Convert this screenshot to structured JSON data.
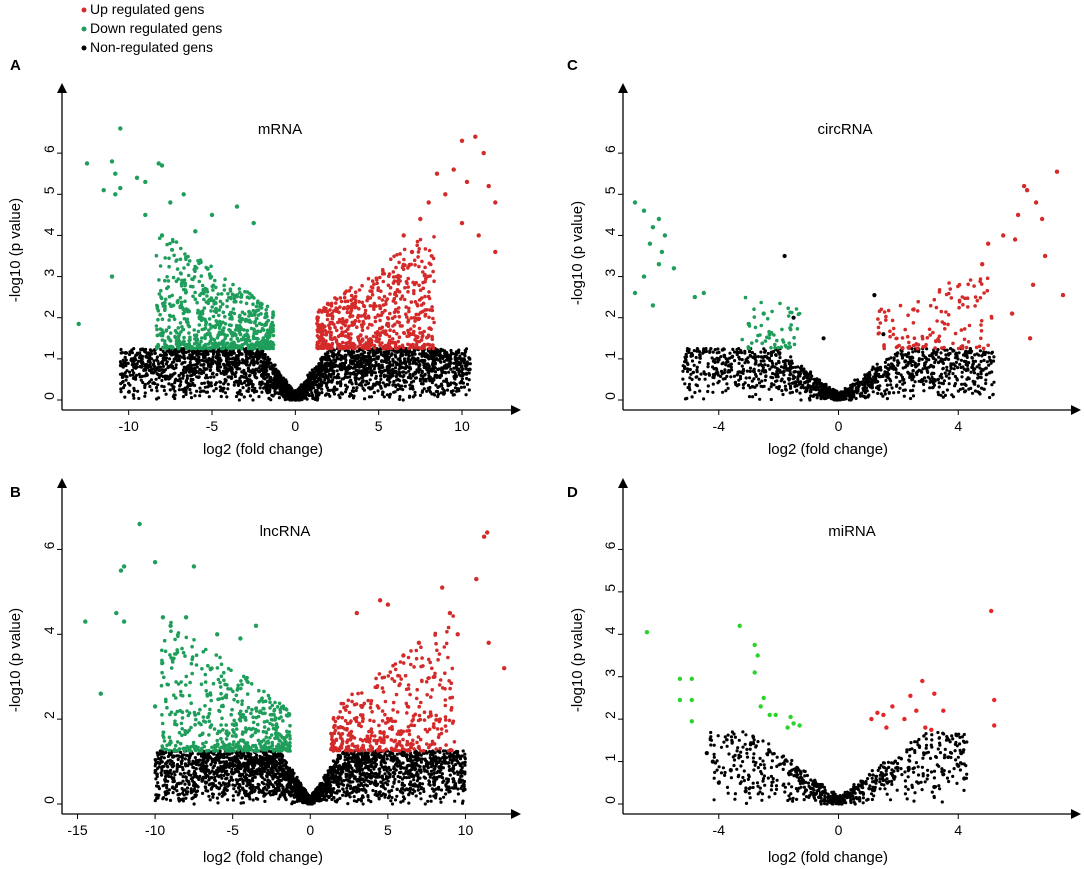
{
  "legend": {
    "position": "top-left",
    "items": [
      {
        "label": "Up regulated gens",
        "color": "#d42a2a"
      },
      {
        "label": "Down regulated gens",
        "color": "#1e9e5a"
      },
      {
        "label": "Non-regulated gens",
        "color": "#000000"
      }
    ]
  },
  "chart_data": [
    {
      "type": "scatter",
      "panel_label": "A",
      "title": "mRNA",
      "xlabel": "log2 (fold change)",
      "ylabel": "-log10 (p value)",
      "xlim": [
        -14,
        13
      ],
      "ylim": [
        0,
        7
      ],
      "xticks": [
        -10,
        -5,
        0,
        5,
        10
      ],
      "yticks": [
        0,
        1,
        2,
        3,
        4,
        5,
        6
      ],
      "colors": {
        "up": "#d42a2a",
        "down": "#1e9e5a",
        "non": "#000000"
      },
      "thresholds": {
        "p": 1.25,
        "fc": 1
      },
      "ns_extent": 10.5,
      "n": {
        "up": 650,
        "down": 700,
        "non": 2800
      },
      "spread": {
        "up": 2.2,
        "down": 2.2
      },
      "seed": 11,
      "outliers_up": [
        [
          10,
          6.3
        ],
        [
          10.8,
          6.4
        ],
        [
          11.3,
          6.0
        ],
        [
          11.6,
          5.2
        ],
        [
          12,
          4.8
        ],
        [
          10.3,
          5.3
        ],
        [
          9.5,
          5.6
        ],
        [
          10,
          4.3
        ],
        [
          11,
          4.0
        ],
        [
          12,
          3.6
        ],
        [
          8.5,
          5.5
        ],
        [
          9,
          5.0
        ],
        [
          8,
          4.8
        ],
        [
          7.5,
          4.4
        ],
        [
          6.5,
          4.0
        ],
        [
          7,
          3.6
        ]
      ],
      "outliers_down": [
        [
          -10.5,
          6.6
        ],
        [
          -12.5,
          5.75
        ],
        [
          -11,
          5.8
        ],
        [
          -10.8,
          5.5
        ],
        [
          -9.5,
          5.4
        ],
        [
          -8.2,
          5.75
        ],
        [
          -8,
          5.7
        ],
        [
          -9,
          5.3
        ],
        [
          -11.5,
          5.1
        ],
        [
          -10.8,
          5.0
        ],
        [
          -10.5,
          5.15
        ],
        [
          -13,
          1.85
        ],
        [
          -11,
          3.0
        ],
        [
          -6.7,
          5.0
        ],
        [
          -7.5,
          4.8
        ],
        [
          -3.5,
          4.7
        ],
        [
          -5,
          4.5
        ],
        [
          -9,
          4.5
        ],
        [
          -8,
          4.0
        ],
        [
          -6,
          4.1
        ],
        [
          -2.5,
          4.3
        ]
      ]
    },
    {
      "type": "scatter",
      "panel_label": "B",
      "title": "lncRNA",
      "xlabel": "log2 (fold change)",
      "ylabel": "-log10 (p value)",
      "xlim": [
        -16,
        13
      ],
      "ylim": [
        0,
        7
      ],
      "xticks": [
        -15,
        -10,
        -5,
        0,
        5,
        10
      ],
      "yticks": [
        0,
        2,
        4,
        6
      ],
      "colors": {
        "up": "#d42a2a",
        "down": "#1e9e5a",
        "non": "#000000"
      },
      "thresholds": {
        "p": 1.25,
        "fc": 1
      },
      "ns_extent": 10,
      "n": {
        "up": 400,
        "down": 520,
        "non": 2600
      },
      "spread": {
        "up": 2.5,
        "down": 2.6
      },
      "seed": 23,
      "outliers_up": [
        [
          11.4,
          6.4
        ],
        [
          11.2,
          6.3
        ],
        [
          10.7,
          5.3
        ],
        [
          8.5,
          5.1
        ],
        [
          12.5,
          3.2
        ],
        [
          11.5,
          3.8
        ],
        [
          9,
          4.5
        ],
        [
          4.5,
          4.8
        ],
        [
          5,
          4.7
        ],
        [
          3,
          4.5
        ],
        [
          7,
          3.8
        ],
        [
          9.5,
          4.0
        ],
        [
          6,
          3.5
        ],
        [
          8,
          3.0
        ]
      ],
      "outliers_down": [
        [
          -11,
          6.6
        ],
        [
          -12,
          5.6
        ],
        [
          -12.2,
          5.5
        ],
        [
          -10,
          5.7
        ],
        [
          -7.5,
          5.6
        ],
        [
          -14.5,
          4.3
        ],
        [
          -12.5,
          4.5
        ],
        [
          -12,
          4.3
        ],
        [
          -9.5,
          4.4
        ],
        [
          -8,
          4.4
        ],
        [
          -13.5,
          2.6
        ],
        [
          -10,
          2.3
        ],
        [
          -9,
          4.2
        ],
        [
          -6,
          4.0
        ],
        [
          -3.5,
          4.2
        ],
        [
          -4.5,
          3.9
        ]
      ]
    },
    {
      "type": "scatter",
      "panel_label": "C",
      "title": "circRNA",
      "xlabel": "log2 (fold change)",
      "ylabel": "-log10 (p value)",
      "xlim": [
        -7.2,
        7.8
      ],
      "ylim": [
        0,
        7
      ],
      "xticks": [
        -4,
        0,
        4
      ],
      "yticks": [
        0,
        1,
        2,
        3,
        4,
        5,
        6
      ],
      "colors": {
        "up": "#d42a2a",
        "down": "#1e9e5a",
        "non": "#000000"
      },
      "thresholds": {
        "p": 1.25,
        "fc": 1
      },
      "ns_extent": 5.2,
      "n": {
        "up": 130,
        "down": 55,
        "non": 1300
      },
      "spread": {
        "up": 1.2,
        "down": 0.6
      },
      "seed": 37,
      "outliers_up": [
        [
          7.3,
          5.55
        ],
        [
          6.2,
          5.2
        ],
        [
          6.3,
          5.1
        ],
        [
          6.6,
          4.8
        ],
        [
          6,
          4.5
        ],
        [
          6.8,
          4.4
        ],
        [
          5.5,
          4.0
        ],
        [
          5.9,
          3.9
        ],
        [
          5,
          3.8
        ],
        [
          6.9,
          3.5
        ],
        [
          7.5,
          2.55
        ],
        [
          6.5,
          2.8
        ],
        [
          4.8,
          3.3
        ],
        [
          6.4,
          1.5
        ],
        [
          5.8,
          2.1
        ]
      ],
      "outliers_down": [
        [
          -6.8,
          4.8
        ],
        [
          -6.5,
          4.6
        ],
        [
          -6,
          4.4
        ],
        [
          -6.2,
          4.2
        ],
        [
          -5.8,
          4.0
        ],
        [
          -6.3,
          3.8
        ],
        [
          -5.9,
          3.6
        ],
        [
          -6,
          3.3
        ],
        [
          -6.5,
          3.0
        ],
        [
          -5.5,
          3.2
        ],
        [
          -4.8,
          2.5
        ],
        [
          -4.5,
          2.6
        ],
        [
          -6.2,
          2.3
        ],
        [
          -6.8,
          2.6
        ],
        [
          -2.5,
          2.1
        ],
        [
          -2.3,
          1.6
        ],
        [
          -3,
          1.85
        ]
      ],
      "outliers_non": [
        [
          -1.8,
          3.5
        ],
        [
          1.2,
          2.55
        ],
        [
          -1.5,
          2.0
        ],
        [
          1.5,
          1.6
        ],
        [
          -0.5,
          1.5
        ]
      ]
    },
    {
      "type": "scatter",
      "panel_label": "D",
      "title": "miRNA",
      "xlabel": "log2 (fold change)",
      "ylabel": "-log10 (p value)",
      "xlim": [
        -7.2,
        7.8
      ],
      "ylim": [
        0,
        7
      ],
      "xticks": [
        -4,
        0,
        4
      ],
      "yticks": [
        0,
        1,
        2,
        3,
        4,
        5,
        6
      ],
      "colors": {
        "up": "#e8262a",
        "down": "#2ad42a",
        "non": "#000000"
      },
      "thresholds": {
        "p": 1.7,
        "fc": 1
      },
      "ns_extent": 4.3,
      "n": {
        "up": 0,
        "down": 0,
        "non": 700
      },
      "spread": {
        "up": 1,
        "down": 1
      },
      "seed": 41,
      "outliers_up": [
        [
          5.1,
          4.55
        ],
        [
          5.2,
          2.45
        ],
        [
          5.2,
          1.85
        ],
        [
          3.2,
          2.6
        ],
        [
          2.8,
          2.9
        ],
        [
          3.5,
          2.2
        ],
        [
          2.4,
          2.55
        ],
        [
          1.8,
          2.3
        ],
        [
          1.5,
          2.1
        ],
        [
          1.3,
          2.15
        ],
        [
          2.2,
          2.0
        ],
        [
          1.6,
          1.8
        ],
        [
          2.9,
          1.8
        ],
        [
          3.1,
          1.75
        ],
        [
          1.1,
          2.0
        ],
        [
          2.6,
          2.2
        ]
      ],
      "outliers_down": [
        [
          -6.4,
          4.05
        ],
        [
          -3.3,
          4.2
        ],
        [
          -2.8,
          3.75
        ],
        [
          -2.7,
          3.5
        ],
        [
          -2.8,
          3.1
        ],
        [
          -5.3,
          2.95
        ],
        [
          -4.9,
          2.95
        ],
        [
          -5.3,
          2.45
        ],
        [
          -4.9,
          2.45
        ],
        [
          -4.9,
          1.95
        ],
        [
          -2.5,
          2.5
        ],
        [
          -2.1,
          2.1
        ],
        [
          -1.6,
          2.05
        ],
        [
          -1.5,
          1.9
        ],
        [
          -1.3,
          1.85
        ],
        [
          -2.3,
          2.1
        ],
        [
          -1.7,
          1.8
        ],
        [
          -2.6,
          2.3
        ]
      ],
      "outliers_non": [
        [
          -4.4,
          1.2
        ],
        [
          -4.2,
          1.0
        ],
        [
          -3.6,
          0.8
        ],
        [
          -4.0,
          0.5
        ],
        [
          -3.1,
          0.3
        ],
        [
          4.1,
          1.2
        ],
        [
          4.0,
          0.9
        ],
        [
          3.5,
          0.7
        ],
        [
          4.2,
          0.6
        ],
        [
          3.2,
          0.4
        ]
      ]
    }
  ]
}
